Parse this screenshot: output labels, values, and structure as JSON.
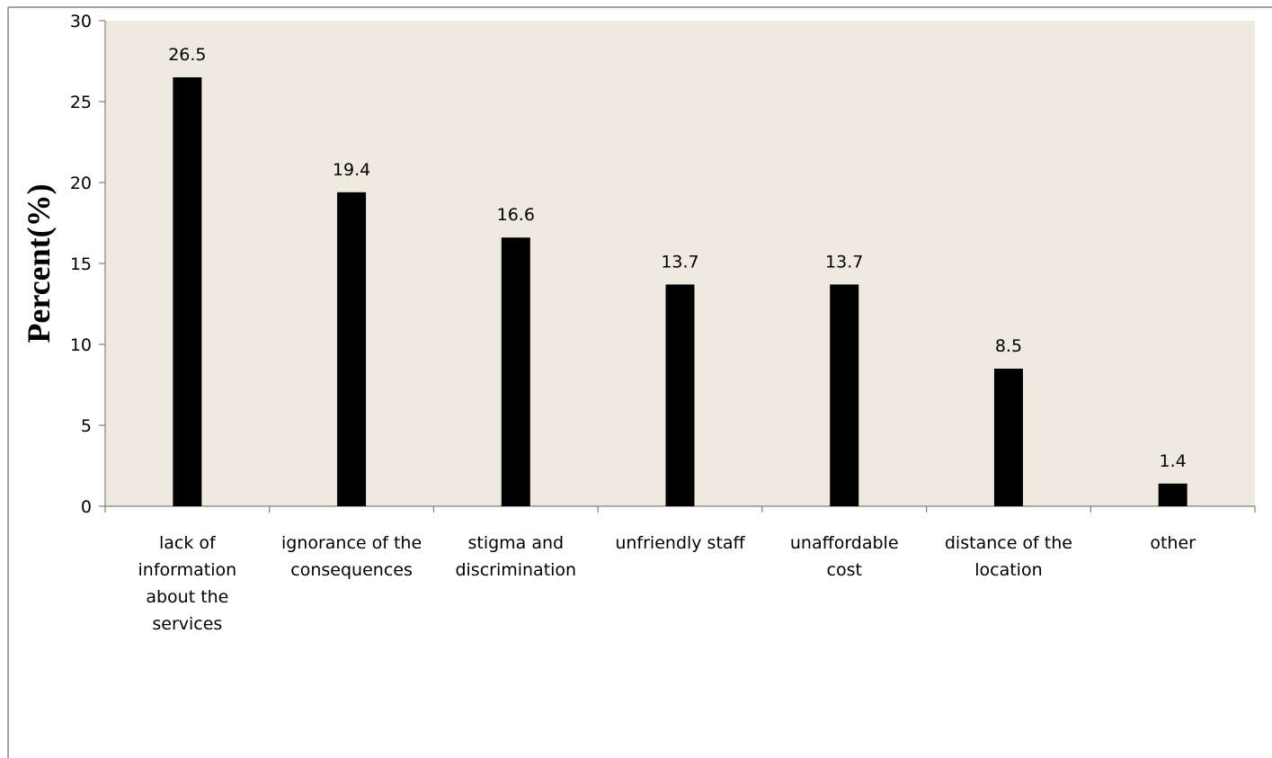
{
  "chart_data": {
    "type": "bar",
    "title": "",
    "xlabel": "",
    "ylabel": "Percent(%)",
    "ylim": [
      0,
      30
    ],
    "yticks": [
      0,
      5,
      10,
      15,
      20,
      25,
      30
    ],
    "grid": false,
    "legend": "none",
    "categories": [
      "lack of information about the services",
      "ignorance of the consequences",
      "stigma and discrimination",
      "unfriendly staff",
      "unaffordable cost",
      "distance of the location",
      "other"
    ],
    "category_lines": [
      [
        "lack of",
        "information",
        "about the",
        "services"
      ],
      [
        "ignorance of the",
        "consequences"
      ],
      [
        "stigma and",
        "discrimination"
      ],
      [
        "unfriendly staff"
      ],
      [
        "unaffordable",
        "cost"
      ],
      [
        "distance of the",
        "location"
      ],
      [
        "other"
      ]
    ],
    "values": [
      26.5,
      19.4,
      16.6,
      13.7,
      13.7,
      8.5,
      1.4
    ],
    "data_labels": [
      "26.5",
      "19.4",
      "16.6",
      "13.7",
      "13.7",
      "8.5",
      "1.4"
    ],
    "colors": {
      "bar": "#000000",
      "plot_background": "#EEEAE0",
      "axis": "#7F7F7F",
      "frame": "#868686"
    }
  }
}
